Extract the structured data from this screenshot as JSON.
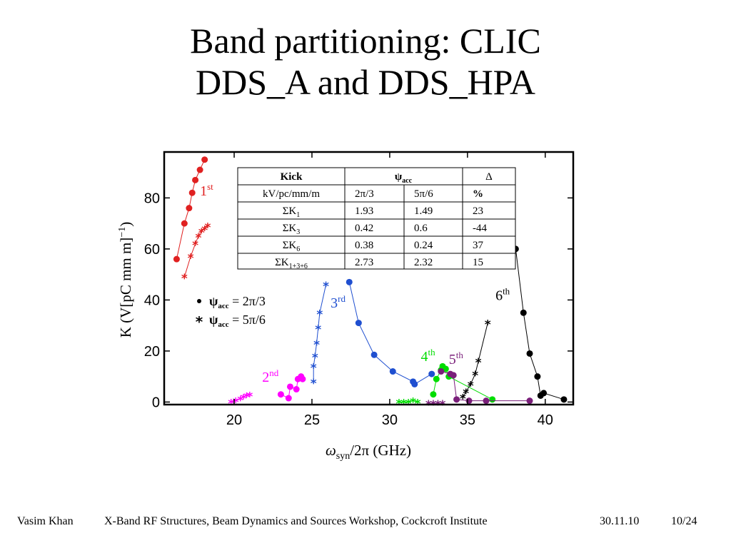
{
  "slide": {
    "title_line1": "Band partitioning: CLIC",
    "title_line2": "DDS_A and DDS_HPA"
  },
  "footer": {
    "author": "Vasim Khan",
    "event": "X-Band RF Structures, Beam Dynamics and Sources Workshop, Cockcroft Institute",
    "date": "30.11.10",
    "page": "10/24"
  },
  "chart_data": {
    "type": "scatter",
    "xlabel_symbol": "ω",
    "xlabel_sub": "syn",
    "xlabel_rest": "/2π (GHz)",
    "ylabel": "K (V[pC mm m]",
    "ylabel_sup": "−1",
    "ylabel_end": ")",
    "xlim": [
      15.5,
      41.8
    ],
    "ylim": [
      -1,
      98
    ],
    "x_ticks": [
      20,
      25,
      30,
      35,
      40
    ],
    "y_ticks": [
      0,
      20,
      40,
      60,
      80
    ],
    "grid": false,
    "legend_position": "middle-left",
    "legend": [
      {
        "marker": "dot",
        "symbol": "ψ",
        "sub": "acc",
        "value": " = 2π/3"
      },
      {
        "marker": "star",
        "symbol": "ψ",
        "sub": "acc",
        "value": " = 5π/6"
      }
    ],
    "band_labels": [
      {
        "num": "1",
        "sup": "st",
        "x": 17.8,
        "y": 81,
        "color": "#e02020"
      },
      {
        "num": "2",
        "sup": "nd",
        "x": 21.8,
        "y": 8,
        "color": "#ff00ff"
      },
      {
        "num": "3",
        "sup": "rd",
        "x": 26.2,
        "y": 37,
        "color": "#1f4fd0"
      },
      {
        "num": "4",
        "sup": "th",
        "x": 32.0,
        "y": 16,
        "color": "#00dd00"
      },
      {
        "num": "5",
        "sup": "th",
        "x": 33.8,
        "y": 15,
        "color": "#7a1f7a"
      },
      {
        "num": "6",
        "sup": "th",
        "x": 36.8,
        "y": 40,
        "color": "#000000"
      }
    ],
    "series": [
      {
        "name": "1st 2π/3",
        "color": "#e02020",
        "marker": "dot",
        "points": [
          [
            16.3,
            56
          ],
          [
            16.8,
            70
          ],
          [
            17.1,
            76
          ],
          [
            17.3,
            82
          ],
          [
            17.5,
            87
          ],
          [
            17.8,
            91
          ],
          [
            18.1,
            95
          ]
        ]
      },
      {
        "name": "1st 5π/6",
        "color": "#e02020",
        "marker": "star",
        "points": [
          [
            16.8,
            49
          ],
          [
            17.2,
            57
          ],
          [
            17.5,
            62
          ],
          [
            17.7,
            65
          ],
          [
            17.9,
            67
          ],
          [
            18.1,
            68
          ],
          [
            18.3,
            69
          ]
        ]
      },
      {
        "name": "2nd 2π/3",
        "color": "#ff00ff",
        "marker": "dot",
        "points": [
          [
            23.0,
            3
          ],
          [
            23.5,
            1.5
          ],
          [
            23.6,
            6
          ],
          [
            24.0,
            5
          ],
          [
            24.1,
            9
          ],
          [
            24.3,
            10
          ],
          [
            24.4,
            9
          ]
        ]
      },
      {
        "name": "2nd 5π/6",
        "color": "#ff00ff",
        "marker": "star",
        "points": [
          [
            19.8,
            0
          ],
          [
            20.1,
            0.6
          ],
          [
            20.4,
            1.2
          ],
          [
            20.6,
            2
          ],
          [
            20.8,
            2.5
          ],
          [
            21.0,
            2.8
          ]
        ]
      },
      {
        "name": "3rd 2π/3",
        "color": "#1f4fd0",
        "marker": "dot",
        "points": [
          [
            27.4,
            47
          ],
          [
            28.0,
            31
          ],
          [
            29.0,
            18.5
          ],
          [
            30.2,
            12
          ],
          [
            31.5,
            8
          ],
          [
            31.6,
            7
          ],
          [
            32.7,
            11
          ]
        ]
      },
      {
        "name": "3rd 5π/6",
        "color": "#1f4fd0",
        "marker": "star",
        "points": [
          [
            25.1,
            8
          ],
          [
            25.1,
            14
          ],
          [
            25.2,
            18
          ],
          [
            25.3,
            23
          ],
          [
            25.4,
            29
          ],
          [
            25.5,
            35
          ],
          [
            25.9,
            46
          ]
        ]
      },
      {
        "name": "4th 2π/3",
        "color": "#00dd00",
        "marker": "dot",
        "points": [
          [
            32.8,
            3
          ],
          [
            33.0,
            9
          ],
          [
            33.3,
            12.5
          ],
          [
            33.4,
            14
          ],
          [
            33.6,
            13
          ],
          [
            33.8,
            10
          ],
          [
            36.6,
            1
          ]
        ]
      },
      {
        "name": "4th 5π/6",
        "color": "#00dd00",
        "marker": "star",
        "points": [
          [
            30.6,
            0
          ],
          [
            30.9,
            0
          ],
          [
            31.2,
            0
          ],
          [
            31.5,
            0.5
          ],
          [
            31.8,
            0
          ]
        ]
      },
      {
        "name": "5th 2π/3",
        "color": "#7a1f7a",
        "marker": "dot",
        "points": [
          [
            33.3,
            12
          ],
          [
            33.9,
            11
          ],
          [
            34.1,
            10.5
          ],
          [
            34.3,
            1
          ],
          [
            35.1,
            0.5
          ],
          [
            36.2,
            0.5
          ],
          [
            39.0,
            0.5
          ]
        ]
      },
      {
        "name": "5th 5π/6",
        "color": "#7a1f7a",
        "marker": "star",
        "points": [
          [
            32.5,
            -0.5
          ],
          [
            32.8,
            -0.5
          ],
          [
            33.1,
            -0.5
          ],
          [
            33.4,
            -0.5
          ]
        ]
      },
      {
        "name": "6th 2π/3",
        "color": "#000000",
        "marker": "dot",
        "points": [
          [
            38.1,
            60
          ],
          [
            38.6,
            35
          ],
          [
            39.0,
            19
          ],
          [
            39.5,
            10
          ],
          [
            39.7,
            2.5
          ],
          [
            39.9,
            3.5
          ],
          [
            41.2,
            1
          ]
        ]
      },
      {
        "name": "6th 5π/6",
        "color": "#000000",
        "marker": "star",
        "points": [
          [
            34.7,
            2
          ],
          [
            34.9,
            4
          ],
          [
            35.2,
            7
          ],
          [
            35.5,
            11
          ],
          [
            35.7,
            16
          ],
          [
            36.3,
            31
          ]
        ]
      }
    ],
    "table": {
      "header": [
        {
          "sym": "Kick",
          "sub": ""
        },
        {
          "sym": "ψ",
          "sub": "acc"
        },
        {
          "sym": "Δ",
          "sub": ""
        }
      ],
      "rows": [
        [
          {
            "sym": "kV/pc/mm/m",
            "sub": ""
          },
          "2π/3",
          "5π/6",
          "%"
        ],
        [
          {
            "sym": "ΣK",
            "sub": "1"
          },
          "1.93",
          "1.49",
          "23"
        ],
        [
          {
            "sym": "ΣK",
            "sub": "3"
          },
          "0.42",
          "0.6",
          "-44"
        ],
        [
          {
            "sym": "ΣK",
            "sub": "6"
          },
          "0.38",
          "0.24",
          "37"
        ],
        [
          {
            "sym": "ΣK",
            "sub": "1+3+6"
          },
          "2.73",
          "2.32",
          "15"
        ]
      ]
    }
  }
}
